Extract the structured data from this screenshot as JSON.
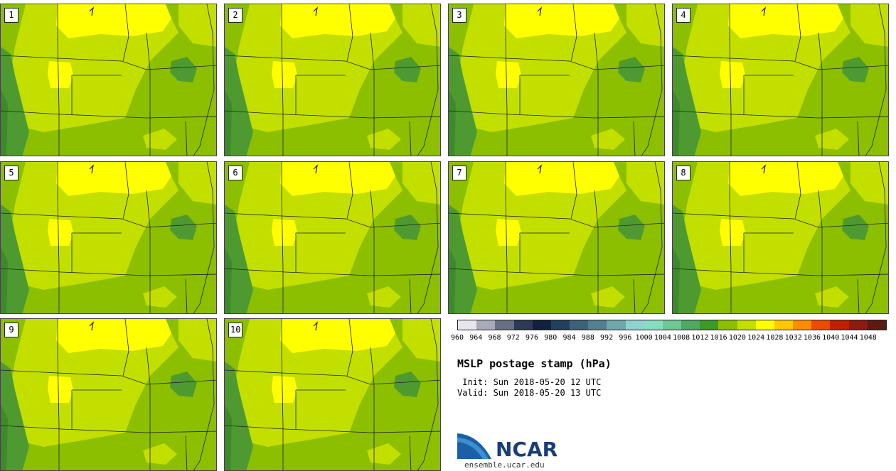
{
  "panels": [
    {
      "label": "1"
    },
    {
      "label": "2"
    },
    {
      "label": "3"
    },
    {
      "label": "4"
    },
    {
      "label": "5"
    },
    {
      "label": "6"
    },
    {
      "label": "7"
    },
    {
      "label": "8"
    },
    {
      "label": "9"
    },
    {
      "label": "10"
    }
  ],
  "colorbar": {
    "labels": [
      "960",
      "964",
      "968",
      "972",
      "976",
      "980",
      "984",
      "988",
      "992",
      "996",
      "1000",
      "1004",
      "1008",
      "1012",
      "1016",
      "1020",
      "1024",
      "1028",
      "1032",
      "1036",
      "1040",
      "1044",
      "1048"
    ],
    "colors": [
      "#e6e6ec",
      "#a8aabb",
      "#676f85",
      "#2e3a55",
      "#10223d",
      "#22405e",
      "#3c6178",
      "#528091",
      "#6fa7ad",
      "#8fd3cf",
      "#87ddc2",
      "#6fc793",
      "#4fa864",
      "#3c9a26",
      "#8cbf00",
      "#c3df00",
      "#ffff00",
      "#ffc800",
      "#ff8c00",
      "#ee4a00",
      "#c02000",
      "#8e1a10",
      "#5c1a10"
    ]
  },
  "map_colors": {
    "base": "#8cbf00",
    "light": "#c3df00",
    "high": "#ffff00",
    "dark": "#4f9a30",
    "darker": "#3c8a28",
    "boundary": "#222222"
  },
  "title": "MSLP postage stamp (hPa)",
  "init": " Init: Sun 2018-05-20 12 UTC",
  "valid": "Valid: Sun 2018-05-20 13 UTC",
  "logo": {
    "text": "NCAR",
    "url": "ensemble.ucar.edu",
    "colors": {
      "blue": "#1a5fa8",
      "light_blue": "#3e8fd0",
      "swoosh": "#ffffff"
    }
  }
}
